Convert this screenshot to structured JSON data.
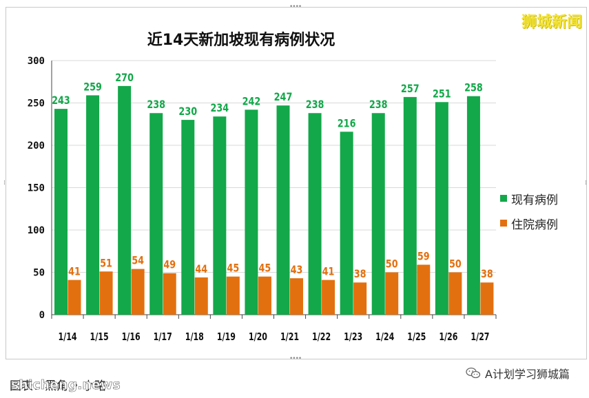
{
  "brand": "狮城新闻",
  "caption": "图表：黑角 • 小略",
  "watermark": "shicheng.news",
  "wechat_account": "A计划学习狮城篇",
  "colors": {
    "current": "#13a84a",
    "hospital": "#e3700f",
    "current_label": "#13a84a",
    "hospital_label": "#e3700f"
  },
  "chart_data": {
    "type": "bar",
    "title": "近14天新加坡现有病例状况",
    "categories": [
      "1/14",
      "1/15",
      "1/16",
      "1/17",
      "1/18",
      "1/19",
      "1/20",
      "1/21",
      "1/22",
      "1/23",
      "1/24",
      "1/25",
      "1/26",
      "1/27"
    ],
    "series": [
      {
        "name": "现有病例",
        "values": [
          243,
          259,
          270,
          238,
          230,
          234,
          242,
          247,
          238,
          216,
          238,
          257,
          251,
          258
        ]
      },
      {
        "name": "住院病例",
        "values": [
          41,
          51,
          54,
          49,
          44,
          45,
          45,
          43,
          41,
          38,
          50,
          59,
          50,
          38
        ]
      }
    ],
    "ylim": [
      0,
      300
    ],
    "yticks": [
      0,
      50,
      100,
      150,
      200,
      250,
      300
    ],
    "grid": true,
    "legend": "right"
  }
}
